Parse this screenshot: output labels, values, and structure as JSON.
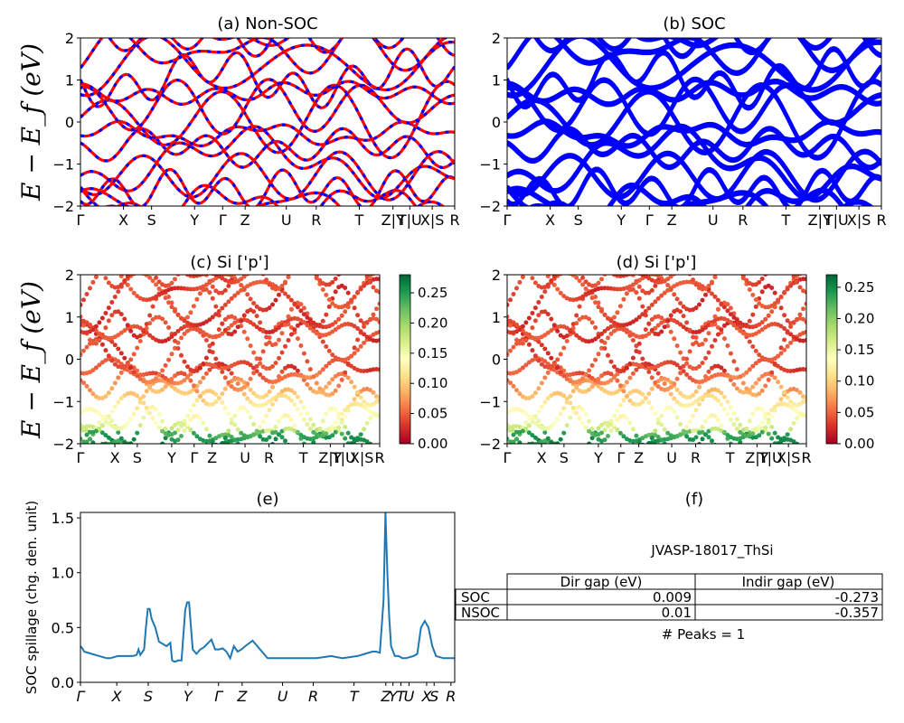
{
  "chart_data": [
    {
      "id": "a",
      "type": "line",
      "title": "(a) Non-SOC",
      "ylabel": "E − E_f (eV)",
      "ylim": [
        -2,
        2
      ],
      "yticks": [
        "−2",
        "−1",
        "0",
        "1",
        "2"
      ],
      "kpath_labels": [
        "Γ",
        "X",
        "S",
        "Y",
        "Γ",
        "Z",
        "U",
        "R",
        "T",
        "Z|Y",
        "T|U",
        "X|S",
        "R"
      ],
      "series": [
        {
          "color": "#ff0000",
          "style": "solid",
          "bands": "band_set"
        },
        {
          "color": "#0000ff",
          "style": "dashed",
          "bands": "band_set"
        }
      ]
    },
    {
      "id": "b",
      "type": "line",
      "title": "(b) SOC",
      "ylim": [
        -2,
        2
      ],
      "yticks": [
        "−2",
        "−1",
        "0",
        "1",
        "2"
      ],
      "kpath_labels": [
        "Γ",
        "X",
        "S",
        "Y",
        "Γ",
        "Z",
        "U",
        "R",
        "T",
        "Z|Y",
        "T|U",
        "X|S",
        "R"
      ],
      "series": [
        {
          "color": "#0000ff",
          "style": "thick",
          "bands": "band_set"
        }
      ]
    },
    {
      "id": "c",
      "type": "scatter",
      "title": "(c)  Si ['p']",
      "ylabel": "E − E_f (eV)",
      "ylim": [
        -2,
        2
      ],
      "yticks": [
        "−2",
        "−1",
        "0",
        "1",
        "2"
      ],
      "kpath_labels": [
        "Γ",
        "X",
        "S",
        "Y",
        "Γ",
        "Z",
        "U",
        "R",
        "T",
        "Z|Y",
        "T|U",
        "X|S",
        "R"
      ],
      "colorbar": {
        "colormap": "RdYlGn",
        "range": [
          0.0,
          0.28
        ],
        "ticks": [
          "0.00",
          "0.05",
          "0.10",
          "0.15",
          "0.20",
          "0.25"
        ]
      }
    },
    {
      "id": "d",
      "type": "scatter",
      "title": "(d) Si ['p']",
      "ylim": [
        -2,
        2
      ],
      "yticks": [
        "−2",
        "−1",
        "0",
        "1",
        "2"
      ],
      "kpath_labels": [
        "Γ",
        "X",
        "S",
        "Y",
        "Γ",
        "Z",
        "U",
        "R",
        "T",
        "Z|Y",
        "T|U",
        "X|S",
        "R"
      ],
      "colorbar": {
        "colormap": "RdYlGn",
        "range": [
          0.0,
          0.27
        ],
        "ticks": [
          "0.00",
          "0.05",
          "0.10",
          "0.15",
          "0.20",
          "0.25"
        ]
      }
    },
    {
      "id": "e",
      "type": "line",
      "title": "(e)",
      "ylabel": "SOC spillage (chg. den. unit)",
      "ylim": [
        0,
        1.55
      ],
      "yticks": [
        "0.0",
        "0.5",
        "1.0",
        "1.5"
      ],
      "kpath_labels": [
        "Γ",
        "X",
        "S",
        "Y",
        "Γ",
        "Z",
        "U",
        "R",
        "T",
        "Z",
        "Y",
        "T",
        "U",
        "X",
        "S",
        "R"
      ],
      "series": [
        {
          "color": "#1f77b4",
          "x": [
            0.0,
            0.005,
            0.01,
            0.03,
            0.05,
            0.07,
            0.08,
            0.09,
            0.1,
            0.12,
            0.14,
            0.15,
            0.155,
            0.16,
            0.17,
            0.175,
            0.18,
            0.185,
            0.19,
            0.2,
            0.21,
            0.22,
            0.23,
            0.24,
            0.245,
            0.25,
            0.255,
            0.26,
            0.27,
            0.28,
            0.285,
            0.29,
            0.3,
            0.31,
            0.32,
            0.33,
            0.35,
            0.36,
            0.37,
            0.38,
            0.39,
            0.4,
            0.41,
            0.42,
            0.43,
            0.44,
            0.46,
            0.5,
            0.55,
            0.6,
            0.63,
            0.65,
            0.67,
            0.7,
            0.74,
            0.76,
            0.78,
            0.79,
            0.8,
            0.81,
            0.815,
            0.82,
            0.825,
            0.83,
            0.84,
            0.85,
            0.86,
            0.87,
            0.88,
            0.89,
            0.9,
            0.91,
            0.92,
            0.93,
            0.94,
            0.95,
            0.97,
            1.0
          ],
          "y": [
            0.33,
            0.31,
            0.28,
            0.26,
            0.24,
            0.22,
            0.22,
            0.23,
            0.24,
            0.24,
            0.24,
            0.25,
            0.3,
            0.25,
            0.3,
            0.5,
            0.67,
            0.67,
            0.58,
            0.5,
            0.37,
            0.35,
            0.33,
            0.36,
            0.2,
            0.19,
            0.19,
            0.2,
            0.2,
            0.66,
            0.73,
            0.73,
            0.3,
            0.26,
            0.3,
            0.32,
            0.39,
            0.3,
            0.3,
            0.31,
            0.28,
            0.22,
            0.33,
            0.28,
            0.3,
            0.33,
            0.38,
            0.22,
            0.22,
            0.22,
            0.22,
            0.23,
            0.24,
            0.22,
            0.24,
            0.26,
            0.28,
            0.28,
            0.27,
            0.75,
            1.55,
            1.0,
            0.6,
            0.33,
            0.24,
            0.24,
            0.22,
            0.22,
            0.23,
            0.24,
            0.26,
            0.5,
            0.56,
            0.5,
            0.33,
            0.24,
            0.22,
            0.22
          ]
        }
      ]
    }
  ],
  "panel_f": {
    "title": "(f)",
    "jid": "JVASP-18017_ThSi",
    "columns": [
      "Dir gap (eV)",
      "Indir gap (eV)"
    ],
    "rows": [
      {
        "label": "SOC",
        "dir": "0.009",
        "indir": "-0.273"
      },
      {
        "label": "NSOC",
        "dir": "0.01",
        "indir": "-0.357"
      }
    ],
    "peaks": "# Peaks = 1"
  }
}
